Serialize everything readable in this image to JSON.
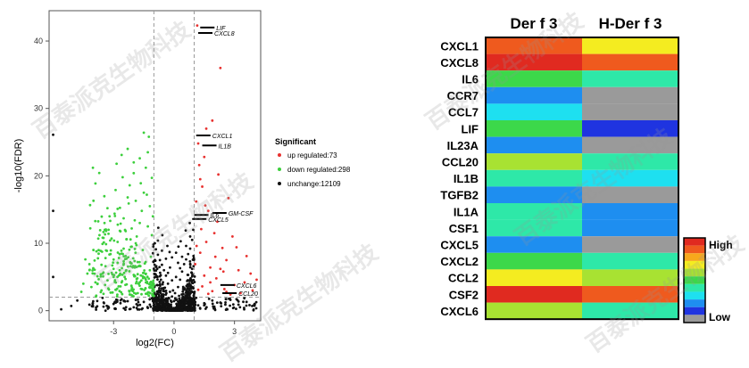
{
  "chart_data": [
    {
      "type": "scatter",
      "title": "",
      "xlabel": "log2(FC)",
      "ylabel": "-log10(FDR)",
      "xlim": [
        -6.2,
        4.3
      ],
      "ylim": [
        -1.5,
        44.5
      ],
      "x_ticks": [
        -3,
        0,
        3
      ],
      "y_ticks": [
        0,
        10,
        20,
        30,
        40
      ],
      "thresholds": {
        "x": [
          -1,
          1
        ],
        "y": 2
      },
      "legend": {
        "title": "Significant",
        "placement": "right",
        "items": [
          {
            "label": "up regulated:73",
            "color": "#e8312f"
          },
          {
            "label": "down regulated:298",
            "color": "#3ccf3c"
          },
          {
            "label": "unchange:12109",
            "color": "#111111"
          }
        ]
      },
      "annotations": [
        {
          "label": "LIF",
          "x": 1.3,
          "y": 42.0
        },
        {
          "label": "CXCL8",
          "x": 1.2,
          "y": 41.2
        },
        {
          "label": "CXCL1",
          "x": 1.1,
          "y": 26.0
        },
        {
          "label": "IL1B",
          "x": 1.4,
          "y": 24.5
        },
        {
          "label": "GM-CSF",
          "x": 1.9,
          "y": 14.5
        },
        {
          "label": "IL6",
          "x": 1.0,
          "y": 14.2
        },
        {
          "label": "CXCL5",
          "x": 0.9,
          "y": 13.6
        },
        {
          "label": "CXCL6",
          "x": 2.3,
          "y": 3.8
        },
        {
          "label": "CCL20",
          "x": 2.4,
          "y": 2.6
        }
      ],
      "up_points": [
        [
          1.2,
          3.1
        ],
        [
          1.5,
          5.2
        ],
        [
          1.8,
          6.4
        ],
        [
          2.1,
          4.8
        ],
        [
          2.6,
          7.5
        ],
        [
          1.3,
          8.6
        ],
        [
          1.6,
          10.2
        ],
        [
          2.0,
          11.5
        ],
        [
          2.4,
          9.3
        ],
        [
          3.2,
          6.0
        ],
        [
          3.5,
          4.2
        ],
        [
          3.8,
          5.5
        ],
        [
          1.1,
          16.2
        ],
        [
          1.4,
          18.4
        ],
        [
          1.7,
          14.8
        ],
        [
          2.2,
          20.2
        ],
        [
          2.7,
          16.7
        ],
        [
          1.25,
          21.6
        ],
        [
          1.6,
          27.0
        ],
        [
          1.9,
          28.2
        ],
        [
          2.3,
          36.0
        ],
        [
          1.15,
          42.3
        ],
        [
          2.5,
          3.2
        ],
        [
          3.0,
          3.8
        ],
        [
          1.4,
          3.6
        ],
        [
          1.9,
          2.9
        ],
        [
          2.8,
          2.4
        ],
        [
          3.3,
          2.6
        ],
        [
          1.05,
          6.9
        ],
        [
          1.35,
          12.1
        ],
        [
          2.15,
          13.2
        ],
        [
          2.9,
          11.0
        ],
        [
          3.6,
          8.1
        ],
        [
          1.5,
          22.8
        ],
        [
          1.2,
          24.8
        ],
        [
          1.7,
          2.5
        ],
        [
          2.05,
          8.0
        ],
        [
          2.45,
          5.8
        ],
        [
          3.9,
          3.0
        ],
        [
          4.1,
          4.6
        ],
        [
          1.12,
          9.6
        ],
        [
          1.55,
          15.6
        ],
        [
          2.6,
          2.8
        ],
        [
          1.8,
          4.2
        ],
        [
          2.3,
          6.2
        ],
        [
          3.1,
          9.4
        ],
        [
          1.3,
          19.5
        ]
      ],
      "down_points": [
        [
          -1.2,
          3.4
        ],
        [
          -1.5,
          5.6
        ],
        [
          -1.8,
          7.2
        ],
        [
          -2.1,
          9.5
        ],
        [
          -2.4,
          11.8
        ],
        [
          -2.7,
          8.4
        ],
        [
          -3.0,
          6.2
        ],
        [
          -3.3,
          4.5
        ],
        [
          -3.6,
          3.0
        ],
        [
          -1.3,
          12.5
        ],
        [
          -1.6,
          14.8
        ],
        [
          -1.9,
          16.3
        ],
        [
          -2.2,
          18.6
        ],
        [
          -2.5,
          13.7
        ],
        [
          -2.8,
          15.1
        ],
        [
          -3.1,
          10.7
        ],
        [
          -3.4,
          7.8
        ],
        [
          -3.8,
          5.1
        ],
        [
          -4.1,
          3.5
        ],
        [
          -4.5,
          4.0
        ],
        [
          -1.1,
          19.7
        ],
        [
          -1.4,
          21.2
        ],
        [
          -1.7,
          22.6
        ],
        [
          -2.0,
          20.4
        ],
        [
          -2.3,
          24.0
        ],
        [
          -2.6,
          23.1
        ],
        [
          -2.9,
          17.9
        ],
        [
          -1.25,
          25.8
        ],
        [
          -1.55,
          9.0
        ],
        [
          -1.85,
          11.0
        ],
        [
          -2.15,
          6.6
        ],
        [
          -2.45,
          5.0
        ],
        [
          -2.75,
          3.6
        ],
        [
          -3.05,
          2.7
        ],
        [
          -3.5,
          2.5
        ],
        [
          -1.15,
          8.0
        ],
        [
          -1.45,
          7.0
        ],
        [
          -1.75,
          4.0
        ],
        [
          -2.05,
          2.9
        ],
        [
          -2.35,
          3.9
        ],
        [
          -2.65,
          12.9
        ],
        [
          -2.95,
          14.4
        ],
        [
          -3.25,
          12.0
        ],
        [
          -3.55,
          9.9
        ],
        [
          -3.85,
          8.8
        ],
        [
          -4.2,
          6.9
        ],
        [
          -4.6,
          2.8
        ],
        [
          -1.35,
          17.2
        ],
        [
          -1.65,
          18.9
        ],
        [
          -1.95,
          13.4
        ],
        [
          -2.25,
          15.9
        ],
        [
          -2.55,
          19.8
        ],
        [
          -2.85,
          21.8
        ],
        [
          -1.05,
          14.0
        ],
        [
          -1.2,
          6.0
        ],
        [
          -1.6,
          3.2
        ],
        [
          -2.0,
          5.3
        ],
        [
          -2.4,
          8.1
        ],
        [
          -2.8,
          10.2
        ],
        [
          -3.2,
          14.0
        ],
        [
          -3.7,
          11.2
        ],
        [
          -4.0,
          9.0
        ],
        [
          -4.4,
          7.6
        ],
        [
          -1.1,
          11.2
        ],
        [
          -1.3,
          23.5
        ],
        [
          -1.5,
          26.4
        ],
        [
          -1.8,
          2.6
        ],
        [
          -2.2,
          2.4
        ],
        [
          -2.6,
          4.2
        ],
        [
          -3.0,
          5.0
        ],
        [
          -3.4,
          6.6
        ],
        [
          -3.9,
          4.2
        ],
        [
          -4.3,
          5.5
        ],
        [
          -1.9,
          10.0
        ],
        [
          -2.1,
          12.2
        ],
        [
          -2.3,
          16.8
        ],
        [
          -2.7,
          6.0
        ],
        [
          -1.4,
          4.6
        ],
        [
          -1.7,
          13.0
        ],
        [
          -1.2,
          15.5
        ],
        [
          -1.5,
          17.5
        ],
        [
          -2.0,
          22.0
        ],
        [
          -2.5,
          9.2
        ],
        [
          -3.15,
          8.4
        ],
        [
          -3.45,
          13.0
        ],
        [
          -1.25,
          2.7
        ],
        [
          -1.95,
          6.4
        ],
        [
          -2.35,
          10.6
        ],
        [
          -2.9,
          3.1
        ],
        [
          -3.6,
          6.8
        ]
      ],
      "black_points": [
        [
          0,
          0.4
        ],
        [
          0.1,
          1.6
        ],
        [
          -0.1,
          2.1
        ],
        [
          0.2,
          3.5
        ],
        [
          -0.2,
          2.8
        ],
        [
          0.3,
          4.6
        ],
        [
          -0.3,
          4.0
        ],
        [
          0.4,
          5.8
        ],
        [
          -0.4,
          5.2
        ],
        [
          0.5,
          6.9
        ],
        [
          -0.5,
          6.0
        ],
        [
          0.6,
          7.6
        ],
        [
          -0.6,
          6.8
        ],
        [
          0.7,
          8.4
        ],
        [
          -0.7,
          7.5
        ],
        [
          0.8,
          9.2
        ],
        [
          -0.8,
          8.3
        ],
        [
          0.9,
          10.5
        ],
        [
          -0.9,
          9.1
        ],
        [
          0.95,
          12.0
        ],
        [
          -0.95,
          10.0
        ],
        [
          0.15,
          0.8
        ],
        [
          -0.15,
          0.9
        ],
        [
          0.35,
          1.2
        ],
        [
          -0.35,
          1.5
        ],
        [
          0.55,
          2.0
        ],
        [
          -0.55,
          2.4
        ],
        [
          0.75,
          2.7
        ],
        [
          -0.75,
          3.0
        ],
        [
          0.85,
          3.6
        ],
        [
          -0.85,
          3.8
        ],
        [
          0.05,
          2.6
        ],
        [
          -0.05,
          3.0
        ],
        [
          0.25,
          2.2
        ],
        [
          -0.25,
          1.8
        ],
        [
          0.45,
          3.2
        ],
        [
          -0.45,
          3.4
        ],
        [
          0.65,
          4.4
        ],
        [
          -0.65,
          4.6
        ],
        [
          0.1,
          5.0
        ],
        [
          -0.1,
          4.5
        ],
        [
          0.3,
          6.3
        ],
        [
          -0.3,
          5.6
        ],
        [
          0.5,
          1.4
        ],
        [
          -0.5,
          1.1
        ],
        [
          0.7,
          5.3
        ],
        [
          -0.7,
          5.1
        ],
        [
          0.9,
          6.2
        ],
        [
          -0.9,
          6.5
        ],
        [
          0.2,
          7.1
        ],
        [
          -0.2,
          6.4
        ],
        [
          0.4,
          8.0
        ],
        [
          -0.4,
          7.7
        ],
        [
          0.6,
          9.6
        ],
        [
          -0.6,
          8.9
        ],
        [
          0.8,
          11.0
        ],
        [
          -0.8,
          10.4
        ],
        [
          0.12,
          1.0
        ],
        [
          -0.12,
          1.3
        ],
        [
          0.38,
          2.4
        ],
        [
          -0.38,
          2.6
        ],
        [
          0.62,
          3.0
        ],
        [
          -0.62,
          3.3
        ],
        [
          0.82,
          4.8
        ],
        [
          -0.82,
          5.0
        ],
        [
          0.02,
          0.2
        ],
        [
          0.18,
          0.5
        ],
        [
          -0.18,
          0.6
        ],
        [
          0.28,
          0.9
        ],
        [
          -0.28,
          1.0
        ],
        [
          0.48,
          0.7
        ],
        [
          -0.48,
          0.8
        ],
        [
          0.68,
          1.1
        ],
        [
          -0.68,
          1.3
        ],
        [
          0.88,
          1.5
        ],
        [
          -0.88,
          1.6
        ],
        [
          1.2,
          0.8
        ],
        [
          1.5,
          1.1
        ],
        [
          -1.2,
          0.9
        ],
        [
          -1.5,
          1.3
        ],
        [
          1.9,
          1.5
        ],
        [
          -1.9,
          1.6
        ],
        [
          2.3,
          1.2
        ],
        [
          -2.3,
          1.4
        ],
        [
          -3.0,
          1.0
        ],
        [
          -3.5,
          0.6
        ],
        [
          -4.2,
          0.9
        ],
        [
          -4.8,
          1.5
        ],
        [
          -5.6,
          0.2
        ],
        [
          -5.1,
          0.7
        ],
        [
          2.8,
          1.6
        ],
        [
          3.2,
          0.9
        ],
        [
          3.6,
          1.3
        ],
        [
          4.0,
          1.0
        ],
        [
          1.1,
          1.9
        ],
        [
          -1.1,
          1.8
        ],
        [
          1.3,
          0.3
        ],
        [
          -1.3,
          0.4
        ],
        [
          0.95,
          0.2
        ],
        [
          -0.95,
          0.3
        ],
        [
          -6.0,
          5.0
        ],
        [
          -6.0,
          14.8
        ],
        [
          -6.0,
          26.1
        ],
        [
          3.1,
          1.7
        ],
        [
          -2.6,
          1.7
        ],
        [
          2.0,
          0.6
        ],
        [
          -2.0,
          0.5
        ],
        [
          0.33,
          10.3
        ],
        [
          -0.33,
          9.6
        ],
        [
          0.58,
          11.9
        ],
        [
          -0.58,
          11.2
        ],
        [
          0.78,
          13.0
        ],
        [
          -0.78,
          12.3
        ],
        [
          0.1,
          8.6
        ],
        [
          -0.1,
          7.9
        ],
        [
          0.22,
          9.5
        ],
        [
          -0.22,
          8.7
        ]
      ]
    },
    {
      "type": "heatmap",
      "columns": [
        "Der f 3",
        "H-Der f 3"
      ],
      "rows": [
        "CXCL1",
        "CXCL8",
        "IL6",
        "CCR7",
        "CCL7",
        "LIF",
        "IL23A",
        "CCL20",
        "IL1B",
        "TGFB2",
        "IL1A",
        "CSF1",
        "CXCL5",
        "CXCL2",
        "CCL2",
        "CSF2",
        "CXCL6"
      ],
      "values": [
        [
          0.82,
          0.6
        ],
        [
          0.95,
          0.82
        ],
        [
          0.42,
          0.3
        ],
        [
          0.14,
          null
        ],
        [
          0.22,
          null
        ],
        [
          0.4,
          0.08
        ],
        [
          0.1,
          null
        ],
        [
          0.55,
          0.3
        ],
        [
          0.38,
          0.22
        ],
        [
          0.14,
          null
        ],
        [
          0.3,
          0.12
        ],
        [
          0.38,
          0.14
        ],
        [
          0.1,
          null
        ],
        [
          0.48,
          0.3
        ],
        [
          0.6,
          0.5
        ],
        [
          0.95,
          0.82
        ],
        [
          0.5,
          0.38
        ]
      ],
      "scale": {
        "high_label": "High",
        "low_label": "Low",
        "na_color": "#9a9a9a",
        "colors": [
          "#1f34e0",
          "#1e8ef0",
          "#1ee0f0",
          "#2ee8a8",
          "#3cd84a",
          "#a8e232",
          "#f4ec20",
          "#f7a81c",
          "#ef5a1e",
          "#e02a20"
        ]
      }
    }
  ],
  "watermark": {
    "text": "百泰派克生物科技"
  }
}
